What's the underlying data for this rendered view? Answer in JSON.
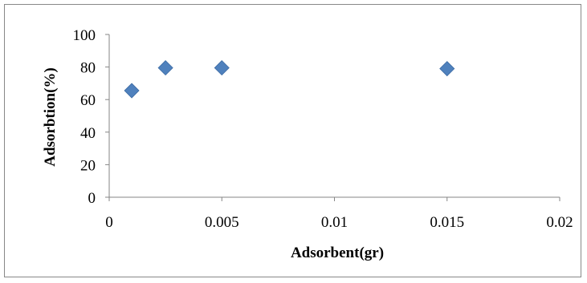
{
  "chart_data": {
    "type": "scatter",
    "title": "",
    "xlabel": "Adsorbent(gr)",
    "ylabel": "Adsorbtion(%)",
    "xlim": [
      0,
      0.02
    ],
    "ylim": [
      0,
      100
    ],
    "x_ticks": [
      0,
      0.005,
      0.01,
      0.015,
      0.02
    ],
    "x_tick_labels": [
      "0",
      "0.005",
      "0.01",
      "0.015",
      "0.02"
    ],
    "y_ticks": [
      0,
      20,
      40,
      60,
      80,
      100
    ],
    "y_tick_labels": [
      "0",
      "20",
      "40",
      "60",
      "80",
      "100"
    ],
    "grid": false,
    "legend": "none",
    "marker": "diamond",
    "series": [
      {
        "color": "#4F81BD",
        "x": [
          0.001,
          0.0025,
          0.005,
          0.015
        ],
        "y": [
          65.5,
          79.5,
          79.5,
          79
        ]
      }
    ]
  }
}
